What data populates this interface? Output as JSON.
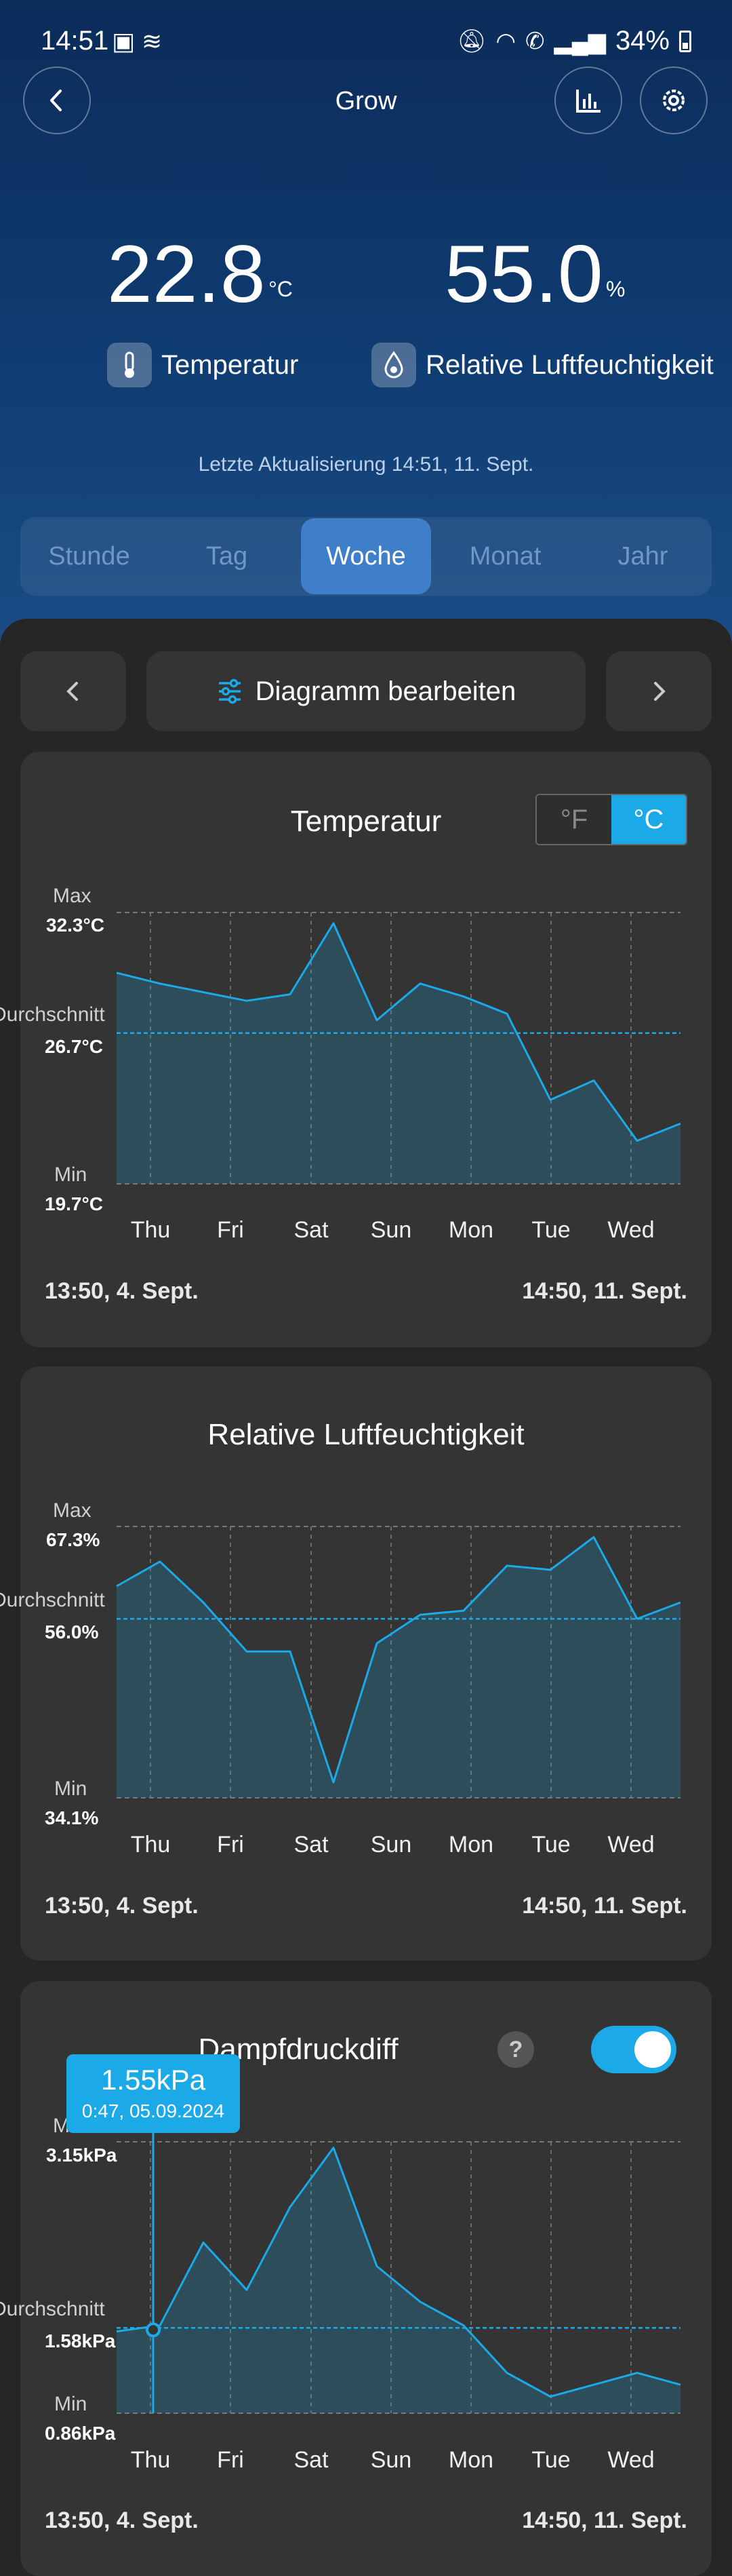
{
  "status_bar": {
    "time": "14:51",
    "battery": "34%"
  },
  "header": {
    "title": "Grow"
  },
  "readings": {
    "temperature": {
      "value": "22.8",
      "unit": "°C",
      "label": "Temperatur"
    },
    "humidity": {
      "value": "55.0",
      "unit": "%",
      "label": "Relative Luftfeuchtigkeit"
    }
  },
  "last_update": "Letzte Aktualisierung 14:51,  11. Sept.",
  "range_tabs": [
    "Stunde",
    "Tag",
    "Woche",
    "Monat",
    "Jahr"
  ],
  "active_range": "Woche",
  "toolbar": {
    "edit_label": "Diagramm bearbeiten"
  },
  "days": [
    "Thu",
    "Fri",
    "Sat",
    "Sun",
    "Mon",
    "Tue",
    "Wed"
  ],
  "charts": [
    {
      "title": "Temperatur",
      "units": {
        "fahrenheit": "°F",
        "celsius": "°C",
        "selected": "°C"
      },
      "max_label": "Max",
      "max_value": "32.3°C",
      "avg_label": "Durchschnitt",
      "avg_value": "26.7°C",
      "min_label": "Min",
      "min_value": "19.7°C",
      "start": "13:50,  4. Sept.",
      "end": "14:50,  11. Sept."
    },
    {
      "title": "Relative Luftfeuchtigkeit",
      "max_label": "Max",
      "max_value": "67.3%",
      "avg_label": "Durchschnitt",
      "avg_value": "56.0%",
      "min_label": "Min",
      "min_value": "34.1%",
      "start": "13:50,  4. Sept.",
      "end": "14:50,  11. Sept."
    },
    {
      "title": "Dampfdruckdiff",
      "max_label": "Max",
      "max_value": "3.15kPa",
      "avg_label": "Durchschnitt",
      "avg_value": "1.58kPa",
      "min_label": "Min",
      "min_value": "0.86kPa",
      "start": "13:50,  4. Sept.",
      "end": "14:50,  11. Sept.",
      "tooltip": {
        "value": "1.55kPa",
        "time": "0:47,  05.09.2024"
      },
      "toggle_on": true
    }
  ],
  "chart_data": [
    {
      "type": "area",
      "title": "Temperatur",
      "x": [
        "Thu",
        "Thu",
        "Fri",
        "Fri",
        "Sat",
        "Sat",
        "Sun",
        "Sun",
        "Mon",
        "Mon",
        "Tue",
        "Tue",
        "Wed",
        "Wed"
      ],
      "values": [
        29.5,
        29.0,
        28.6,
        28.2,
        28.5,
        31.8,
        27.3,
        29.0,
        28.4,
        27.6,
        23.6,
        24.5,
        21.7,
        22.5
      ],
      "ylim": [
        19.7,
        32.3
      ],
      "avg": 26.7,
      "color": "#1ba9e8"
    },
    {
      "type": "area",
      "title": "Relative Luftfeuchtigkeit",
      "x": [
        "Thu",
        "Thu",
        "Fri",
        "Fri",
        "Sat",
        "Sat",
        "Sun",
        "Sun",
        "Mon",
        "Mon",
        "Tue",
        "Tue",
        "Wed",
        "Wed"
      ],
      "values": [
        60.0,
        63.0,
        58.0,
        52.0,
        52.0,
        36.0,
        53.0,
        56.5,
        57.0,
        62.5,
        62.0,
        66.0,
        56.0,
        58.0
      ],
      "ylim": [
        34.1,
        67.3
      ],
      "avg": 56.0,
      "color": "#1ba9e8"
    },
    {
      "type": "area",
      "title": "Dampfdruckdiff",
      "x": [
        "Thu",
        "Thu",
        "Fri",
        "Fri",
        "Sat",
        "Sat",
        "Sun",
        "Sun",
        "Mon",
        "Mon",
        "Tue",
        "Tue",
        "Wed",
        "Wed"
      ],
      "values": [
        1.55,
        1.6,
        2.3,
        1.9,
        2.6,
        3.1,
        2.1,
        1.8,
        1.6,
        1.2,
        1.0,
        1.1,
        1.2,
        1.1
      ],
      "ylim": [
        0.86,
        3.15
      ],
      "avg": 1.58,
      "color": "#1ba9e8"
    }
  ]
}
